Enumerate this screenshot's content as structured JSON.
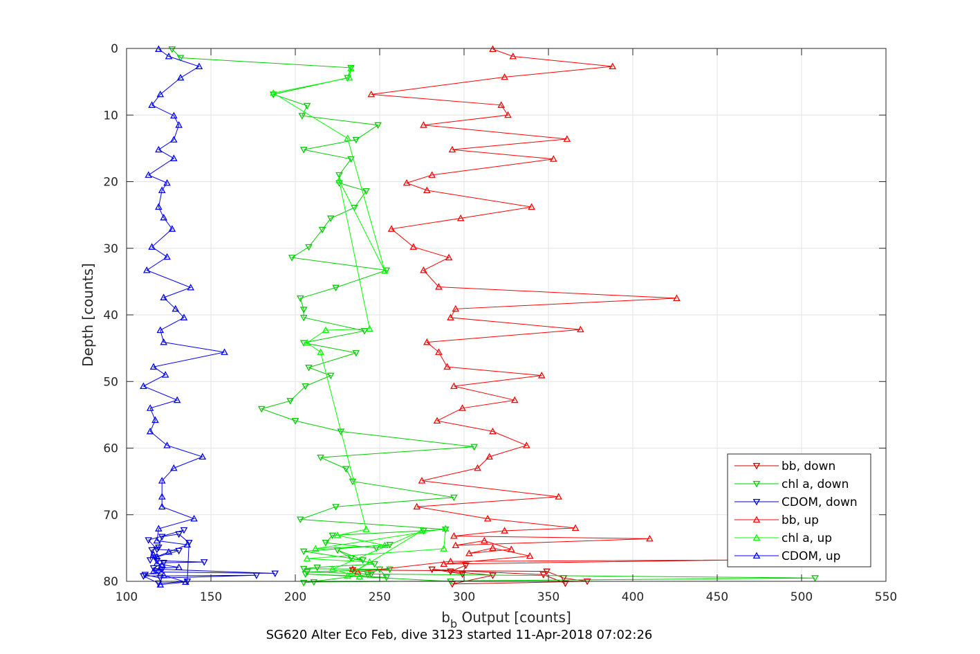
{
  "caption": "SG620 Alter Eco Feb, dive 3123 started 11-Apr-2018 07:02:26",
  "chart_data": {
    "type": "line",
    "xlabel_base": "b",
    "xlabel_sub": "b",
    "xlabel_rest": " Output [counts]",
    "ylabel": "Depth [counts]",
    "xlim": [
      100,
      550
    ],
    "ylim": [
      0,
      80
    ],
    "y_reversed": true,
    "xticks": [
      100,
      150,
      200,
      250,
      300,
      350,
      400,
      450,
      500,
      550
    ],
    "yticks": [
      0,
      10,
      20,
      30,
      40,
      50,
      60,
      70,
      80
    ],
    "grid": true,
    "legend_position": "bottom-right",
    "series": [
      {
        "name": "bb, down",
        "color": "#cc0000",
        "marker": "triangle-down",
        "x": [
          234,
          349,
          359,
          373,
          293,
          317,
          292,
          301,
          299,
          281,
          347,
          360
        ],
        "y": [
          78.3,
          78.5,
          79.5,
          80.0,
          80.4,
          79.1,
          78.5,
          77.6,
          78.9,
          78.2,
          79.0,
          80.3
        ]
      },
      {
        "name": "chl a, down",
        "color": "#00cc00",
        "marker": "triangle-down",
        "x": [
          127,
          132,
          233,
          231,
          187,
          207,
          204,
          249,
          236,
          205,
          233,
          226,
          226,
          242,
          235,
          221,
          216,
          208,
          198,
          254,
          224,
          203,
          205,
          205,
          241,
          205,
          236,
          208,
          221,
          206,
          197,
          180,
          200,
          227,
          306,
          215,
          230,
          234,
          294,
          224,
          203,
          289,
          276,
          222,
          218,
          248,
          256,
          205,
          240,
          225,
          233,
          247,
          213,
          205,
          256,
          207,
          245,
          508,
          211,
          205,
          243,
          250,
          254,
          206,
          292
        ],
        "y": [
          0.1,
          1.4,
          2.9,
          4.4,
          6.9,
          8.6,
          10.1,
          11.5,
          13.7,
          15.2,
          16.6,
          19.0,
          20.2,
          21.4,
          23.9,
          25.5,
          27.2,
          29.8,
          31.4,
          33.3,
          35.9,
          37.5,
          39.2,
          40.4,
          42.4,
          44.2,
          45.7,
          47.9,
          49.1,
          50.7,
          52.9,
          54.1,
          55.9,
          57.5,
          59.8,
          61.4,
          63.1,
          65.0,
          67.4,
          68.8,
          70.7,
          72.2,
          72.4,
          73.1,
          74.2,
          75.0,
          74.5,
          75.5,
          76.8,
          75.3,
          76.5,
          77.4,
          77.9,
          78.1,
          78.2,
          78.6,
          78.9,
          79.5,
          80.1,
          80.2,
          79.0,
          78.2,
          79.4,
          78.9,
          80.0
        ]
      },
      {
        "name": "CDOM, down",
        "color": "#0000cc",
        "marker": "triangle-down",
        "x": [
          134,
          113,
          118,
          131,
          117,
          118,
          146,
          122,
          116,
          121,
          188,
          119,
          111,
          120,
          177,
          110,
          119,
          136,
          137,
          131,
          121,
          119,
          115,
          114
        ],
        "y": [
          72.3,
          73.8,
          75.2,
          75.4,
          76.4,
          76.9,
          77.1,
          77.2,
          78.0,
          78.2,
          78.8,
          78.6,
          79.0,
          79.5,
          79.1,
          79.2,
          80.3,
          80.0,
          74.2,
          72.9,
          73.3,
          74.9,
          75.3,
          76.8
        ]
      },
      {
        "name": "bb, up",
        "color": "#ff0000",
        "marker": "triangle-up",
        "x": [
          317,
          329,
          388,
          324,
          245,
          322,
          326,
          276,
          361,
          293,
          353,
          281,
          266,
          278,
          340,
          298,
          257,
          270,
          291,
          276,
          285,
          426,
          295,
          292,
          369,
          278,
          285,
          290,
          346,
          294,
          330,
          299,
          284,
          317,
          337,
          315,
          308,
          275,
          356,
          272,
          314,
          366,
          324,
          294,
          410,
          295,
          312,
          328,
          303,
          317,
          339,
          288,
          459,
          292,
          237,
          234
        ],
        "y": [
          0.1,
          1.2,
          2.7,
          4.3,
          6.9,
          8.5,
          10.0,
          11.5,
          13.6,
          15.2,
          16.6,
          19.0,
          20.2,
          21.3,
          23.8,
          25.5,
          27.1,
          29.8,
          31.4,
          33.3,
          35.8,
          37.5,
          39.1,
          40.4,
          42.2,
          44.1,
          45.6,
          47.8,
          49.1,
          50.7,
          52.8,
          54.0,
          55.9,
          57.5,
          59.6,
          61.3,
          63.0,
          64.9,
          67.3,
          68.8,
          70.6,
          72.0,
          72.4,
          73.2,
          73.6,
          74.6,
          73.9,
          75.2,
          75.8,
          75.0,
          76.2,
          77.4,
          76.8,
          77.0,
          78.6,
          78.2
        ]
      },
      {
        "name": "chl a, up",
        "color": "#00ff00",
        "marker": "triangle-up",
        "x": [
          233,
          232,
          187,
          231,
          253,
          226,
          244,
          218,
          207,
          215,
          242,
          225,
          253,
          212,
          289,
          288,
          207,
          244,
          231,
          275,
          222,
          238
        ],
        "y": [
          3.0,
          4.4,
          6.7,
          13.5,
          33.4,
          19.8,
          42.1,
          42.3,
          44.2,
          45.6,
          72.2,
          73.1,
          74.6,
          75.1,
          72.1,
          75.1,
          76.6,
          77.1,
          79.2,
          72.4,
          78.2,
          79.3
        ]
      },
      {
        "name": "CDOM, up",
        "color": "#0000ff",
        "marker": "triangle-up",
        "x": [
          119,
          125,
          143,
          132,
          120,
          115,
          128,
          131,
          128,
          119,
          128,
          113,
          124,
          121,
          119,
          122,
          127,
          115,
          124,
          112,
          138,
          122,
          129,
          134,
          120,
          122,
          158,
          116,
          123,
          110,
          130,
          114,
          117,
          114,
          124,
          145,
          128,
          121,
          121,
          121,
          140,
          119,
          118,
          136,
          125,
          118,
          116,
          118,
          121,
          131,
          120,
          116,
          122,
          135,
          120
        ],
        "y": [
          0.1,
          1.2,
          2.7,
          4.4,
          6.9,
          8.5,
          10.1,
          11.5,
          13.7,
          15.2,
          16.5,
          19.0,
          20.2,
          21.3,
          23.8,
          25.4,
          27.1,
          29.8,
          31.3,
          33.3,
          35.9,
          37.4,
          39.1,
          40.4,
          42.3,
          44.1,
          45.6,
          47.8,
          49.0,
          50.7,
          52.8,
          54.0,
          55.8,
          57.5,
          59.6,
          61.3,
          63.0,
          64.9,
          67.3,
          68.8,
          70.6,
          72.1,
          73.9,
          74.5,
          75.6,
          76.3,
          76.0,
          77.3,
          77.5,
          77.9,
          78.0,
          78.5,
          79.1,
          80.1,
          80.5
        ]
      }
    ]
  }
}
